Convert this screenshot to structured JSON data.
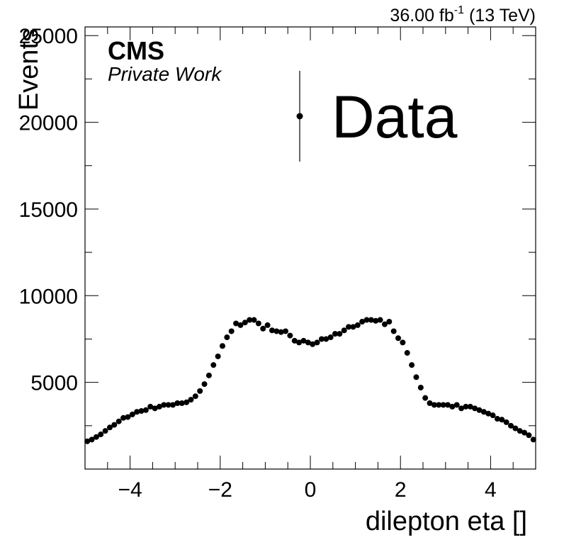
{
  "header": {
    "lumi_value": "36.00 fb",
    "lumi_exp": "-1",
    "energy": " (13 TeV)"
  },
  "labels": {
    "cms": "CMS",
    "private_work": "Private Work"
  },
  "chart_data": {
    "type": "scatter",
    "title": "",
    "xlabel": "dilepton eta []",
    "ylabel": "Events",
    "xlim": [
      -5,
      5
    ],
    "ylim": [
      0,
      25500
    ],
    "xticks": [
      -4,
      -2,
      0,
      2,
      4
    ],
    "xtick_labels": [
      "−4",
      "−2",
      "0",
      "2",
      "4"
    ],
    "yticks": [
      5000,
      10000,
      15000,
      20000,
      25000
    ],
    "ytick_labels": [
      "5000",
      "10000",
      "15000",
      "20000",
      "25000"
    ],
    "grid": false,
    "legend": [
      {
        "label": "Data",
        "marker": "circle",
        "placement": "top-right"
      }
    ],
    "series": [
      {
        "name": "Data",
        "x": [
          -4.95,
          -4.85,
          -4.75,
          -4.65,
          -4.55,
          -4.45,
          -4.35,
          -4.25,
          -4.15,
          -4.05,
          -3.95,
          -3.85,
          -3.75,
          -3.65,
          -3.55,
          -3.45,
          -3.35,
          -3.25,
          -3.15,
          -3.05,
          -2.95,
          -2.85,
          -2.75,
          -2.65,
          -2.55,
          -2.45,
          -2.35,
          -2.25,
          -2.15,
          -2.05,
          -1.95,
          -1.85,
          -1.75,
          -1.65,
          -1.55,
          -1.45,
          -1.35,
          -1.25,
          -1.15,
          -1.05,
          -0.95,
          -0.85,
          -0.75,
          -0.65,
          -0.55,
          -0.45,
          -0.35,
          -0.25,
          -0.15,
          -0.05,
          0.05,
          0.15,
          0.25,
          0.35,
          0.45,
          0.55,
          0.65,
          0.75,
          0.85,
          0.95,
          1.05,
          1.15,
          1.25,
          1.35,
          1.45,
          1.55,
          1.65,
          1.75,
          1.85,
          1.95,
          2.05,
          2.15,
          2.25,
          2.35,
          2.45,
          2.55,
          2.65,
          2.75,
          2.85,
          2.95,
          3.05,
          3.15,
          3.25,
          3.35,
          3.45,
          3.55,
          3.65,
          3.75,
          3.85,
          3.95,
          4.05,
          4.15,
          4.25,
          4.35,
          4.45,
          4.55,
          4.65,
          4.75,
          4.85,
          4.95
        ],
        "y": [
          1600,
          1700,
          1850,
          2000,
          2200,
          2400,
          2550,
          2750,
          2950,
          3000,
          3150,
          3300,
          3350,
          3400,
          3600,
          3500,
          3600,
          3700,
          3700,
          3700,
          3800,
          3800,
          3850,
          4000,
          4200,
          4500,
          4900,
          5400,
          6000,
          6500,
          7100,
          7600,
          7950,
          8400,
          8300,
          8450,
          8600,
          8600,
          8400,
          8100,
          8300,
          8000,
          7950,
          7900,
          7950,
          7700,
          7400,
          7300,
          7400,
          7300,
          7200,
          7300,
          7500,
          7500,
          7600,
          7800,
          7800,
          8000,
          8200,
          8200,
          8300,
          8500,
          8600,
          8600,
          8550,
          8600,
          8350,
          8500,
          7950,
          7550,
          7300,
          6700,
          6000,
          5300,
          4700,
          4100,
          3800,
          3700,
          3700,
          3700,
          3700,
          3600,
          3700,
          3500,
          3600,
          3600,
          3500,
          3400,
          3300,
          3200,
          3100,
          2900,
          2850,
          2700,
          2500,
          2350,
          2200,
          2100,
          1950,
          1700
        ]
      }
    ]
  }
}
